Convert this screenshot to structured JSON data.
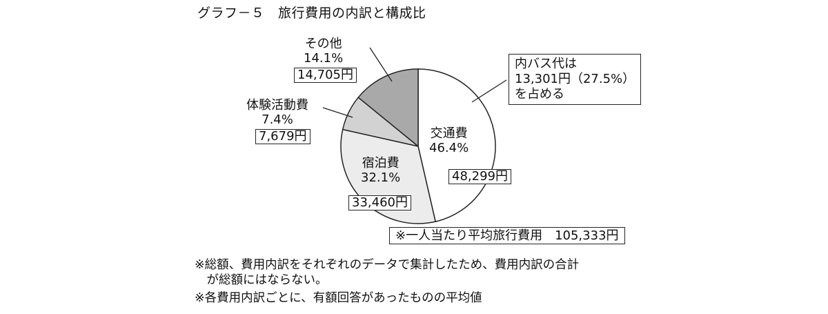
{
  "chart_data": {
    "type": "pie",
    "title": "グラフ－５　旅行費用の内訳と構成比",
    "slices": [
      {
        "label": "交通費",
        "pct_label": "46.4%",
        "amount_label": "48,299円",
        "value": 46.4,
        "color": "#ffffff"
      },
      {
        "label": "宿泊費",
        "pct_label": "32.1%",
        "amount_label": "33,460円",
        "value": 32.1,
        "color": "#ececec"
      },
      {
        "label": "体験活動費",
        "pct_label": "7.4%",
        "amount_label": "7,679円",
        "value": 7.4,
        "color": "#d2d2d2"
      },
      {
        "label": "その他",
        "pct_label": "14.1%",
        "amount_label": "14,705円",
        "value": 14.1,
        "color": "#a9a9a9"
      }
    ],
    "annotation_lines": [
      "内バス代は",
      "13,301円（27.5%）",
      "を占める"
    ],
    "average_label": "※一人当たり平均旅行費用　105,333円"
  },
  "footnotes": [
    "※総額、費用内訳をそれぞれのデータで集計したため、費用内訳の合計",
    "　が総額にはならない。",
    "※各費用内訳ごとに、有額回答があったものの平均値"
  ]
}
